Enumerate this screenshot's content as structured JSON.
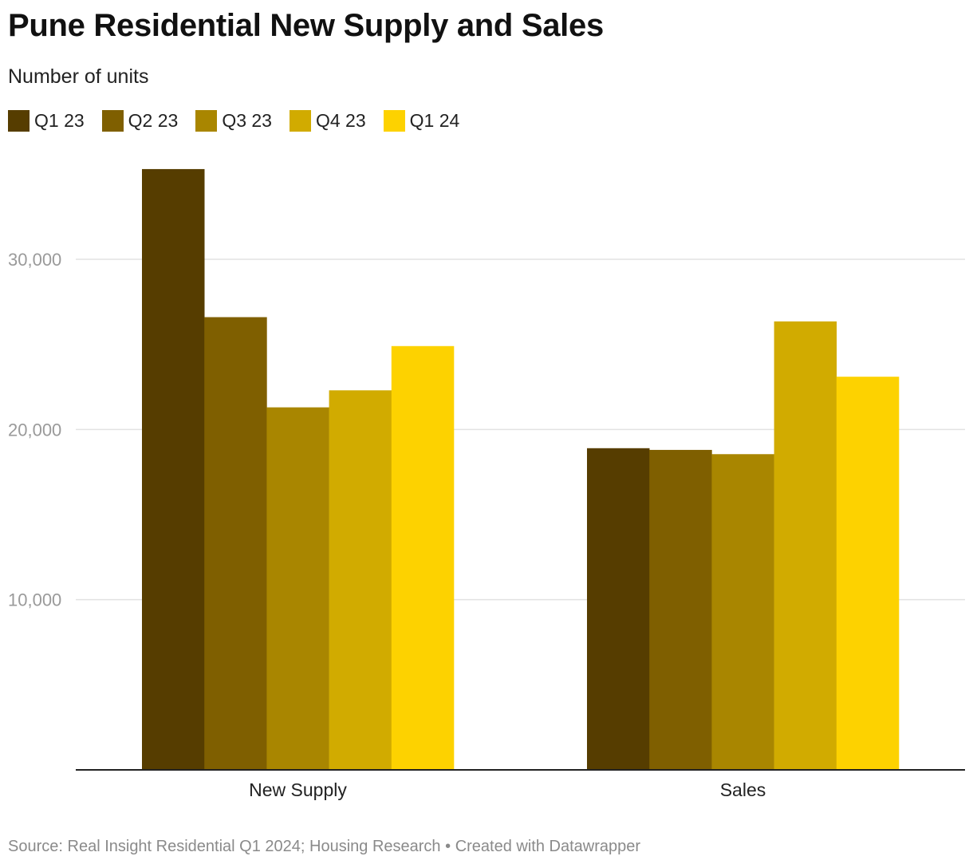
{
  "title": "Pune Residential New Supply and Sales",
  "subtitle": "Number of units",
  "footer": {
    "source_label": "Source:",
    "source": "Real Insight Residential Q1 2024; Housing Research",
    "separator": "•",
    "credit": "Created with Datawrapper"
  },
  "chart_data": {
    "type": "bar",
    "title": "Pune Residential New Supply and Sales",
    "subtitle": "Number of units",
    "xlabel": "",
    "ylabel": "",
    "categories": [
      "New Supply",
      "Sales"
    ],
    "series": [
      {
        "name": "Q1 23",
        "color": "#563d00",
        "values": [
          35300,
          18900
        ]
      },
      {
        "name": "Q2 23",
        "color": "#7f5f00",
        "values": [
          26600,
          18800
        ]
      },
      {
        "name": "Q3 23",
        "color": "#a98600",
        "values": [
          21300,
          18550
        ]
      },
      {
        "name": "Q4 23",
        "color": "#d1ab00",
        "values": [
          22300,
          26350
        ]
      },
      {
        "name": "Q1 24",
        "color": "#fdd200",
        "values": [
          24900,
          23100
        ]
      }
    ],
    "ylim": [
      0,
      35300
    ],
    "yticks": [
      {
        "value": 10000,
        "label": "10,000"
      },
      {
        "value": 20000,
        "label": "20,000"
      },
      {
        "value": 30000,
        "label": "30,000"
      }
    ],
    "grid": true,
    "legend": "top-left"
  }
}
